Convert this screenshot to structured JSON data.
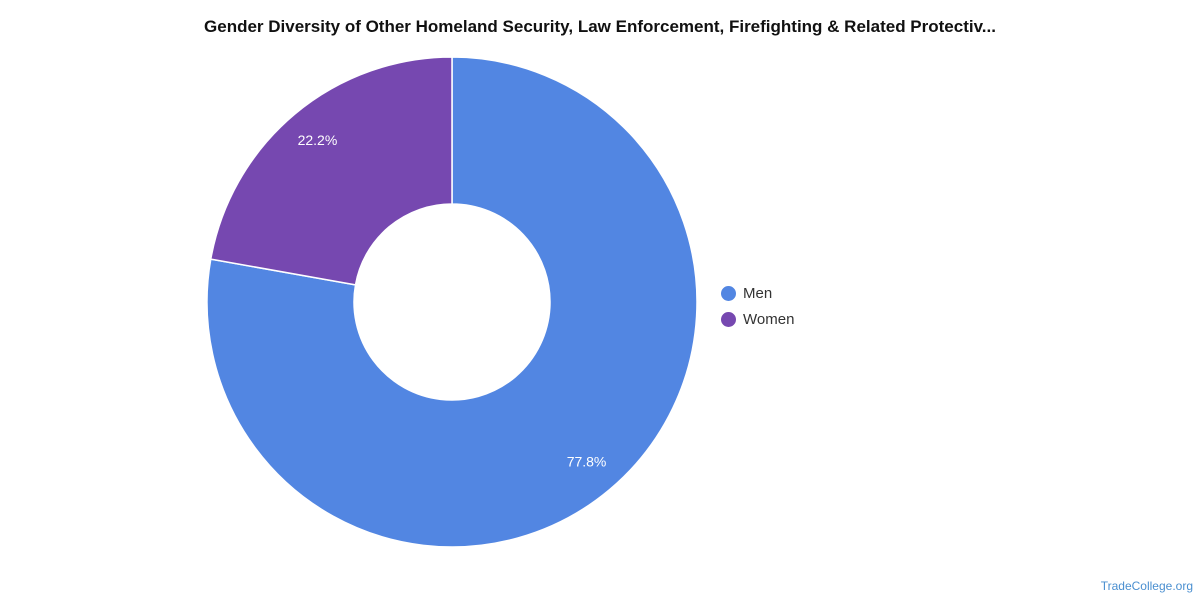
{
  "chart_data": {
    "type": "pie",
    "variant": "donut",
    "title": "Gender Diversity of Other Homeland Security, Law Enforcement, Firefighting & Related Protectiv...",
    "categories": [
      "Men",
      "Women"
    ],
    "values": [
      77.8,
      22.2
    ],
    "labels": [
      "77.8%",
      "22.2%"
    ],
    "colors": [
      "#5286e2",
      "#7648b0"
    ],
    "legend_position": "right"
  },
  "watermark": "TradeCollege.org"
}
